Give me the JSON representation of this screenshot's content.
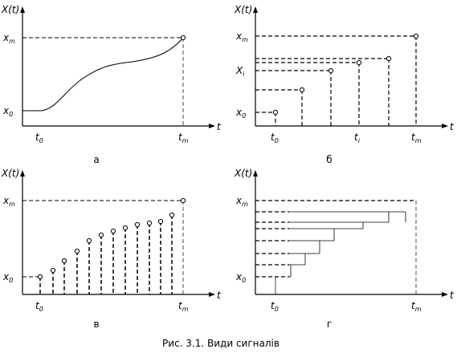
{
  "panels": [
    {
      "label": "а",
      "y_axis": "X(t)",
      "x_axis": "t",
      "levels": [
        {
          "base": "x",
          "sub": "m"
        },
        {
          "base": "x",
          "sub": "0"
        }
      ],
      "times": [
        {
          "base": "t",
          "sub": "0"
        },
        {
          "base": "t",
          "sub": "m"
        }
      ]
    },
    {
      "label": "б",
      "y_axis": "X(t)",
      "x_axis": "t",
      "levels": [
        {
          "base": "x",
          "sub": "m"
        },
        {
          "base": "X",
          "sub": "i"
        },
        {
          "base": "x",
          "sub": "0"
        }
      ],
      "times": [
        {
          "base": "t",
          "sub": "0"
        },
        {
          "base": "t",
          "sub": "i"
        },
        {
          "base": "t",
          "sub": "m"
        }
      ]
    },
    {
      "label": "в",
      "y_axis": "X(t)",
      "x_axis": "t",
      "levels": [
        {
          "base": "x",
          "sub": "m"
        },
        {
          "base": "x",
          "sub": "0"
        }
      ],
      "times": [
        {
          "base": "t",
          "sub": "0"
        },
        {
          "base": "t",
          "sub": "m"
        }
      ]
    },
    {
      "label": "г",
      "y_axis": "X(t)",
      "x_axis": "t",
      "levels": [
        {
          "base": "x",
          "sub": "m"
        },
        {
          "base": "x",
          "sub": "0"
        }
      ],
      "times": [
        {
          "base": "t",
          "sub": "0"
        },
        {
          "base": "t",
          "sub": "m"
        }
      ]
    }
  ],
  "caption": "Рис. 3.1. Види сигналів"
}
